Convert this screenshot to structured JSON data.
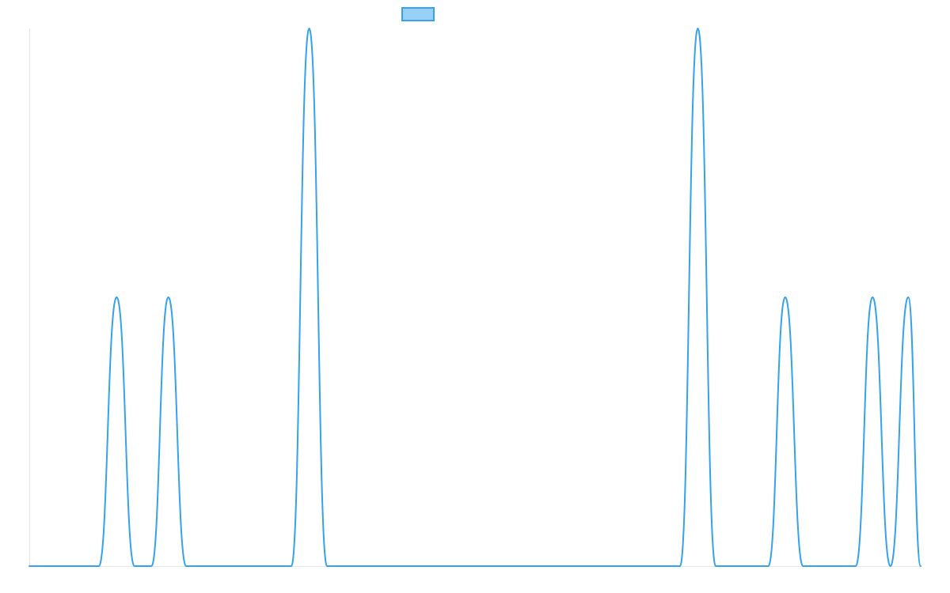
{
  "chart_data": {
    "type": "line",
    "title": "",
    "xlabel": "",
    "ylabel": "",
    "grid": false,
    "legend": "top-center",
    "xlim": [
      0,
      100
    ],
    "ylim": [
      0,
      1
    ],
    "series": [
      {
        "name": "",
        "color": "#36a2eb",
        "fill_color": "#9ad0f5",
        "x": [
          0,
          7.8,
          9.8,
          11.8,
          13.7,
          15.6,
          17.6,
          19.6,
          29.4,
          31.4,
          33.4,
          73.0,
          75.0,
          77.0,
          82.9,
          84.8,
          86.8,
          92.7,
          94.6,
          96.6,
          98.6,
          100
        ],
        "y": [
          0,
          0,
          0.5,
          0,
          0,
          0.5,
          0,
          0,
          0,
          1,
          0,
          0,
          1,
          0,
          0,
          0.5,
          0,
          0,
          0.5,
          0,
          0.5,
          0
        ]
      }
    ]
  }
}
